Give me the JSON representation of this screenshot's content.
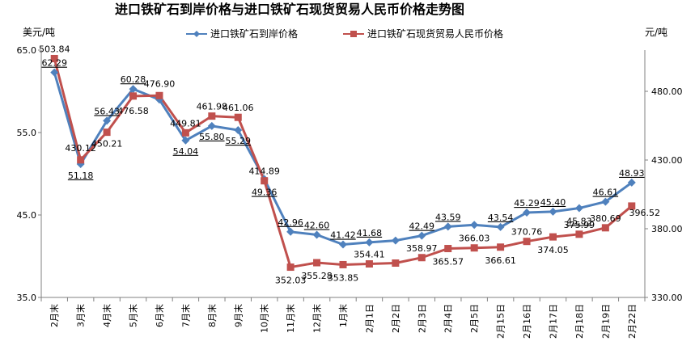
{
  "chart_data": {
    "type": "line",
    "title": "进口铁矿石到岸价格与进口铁矿石现货贸易人民币价格走势图",
    "y_left_unit": "美元/吨",
    "y_right_unit": "元/吨",
    "y_left": {
      "min": 35.0,
      "max": 65.0,
      "ticks": [
        "65.0",
        "55.0",
        "45.0",
        "35.0"
      ],
      "tick_values": [
        65,
        55,
        45,
        35
      ]
    },
    "y_right": {
      "min": 330.0,
      "max": 510.0,
      "ticks": [
        "480.00",
        "430.00",
        "380.00",
        "330.00"
      ],
      "tick_values": [
        480,
        430,
        380,
        330
      ]
    },
    "grid": false,
    "legend_position": "top-center",
    "categories": [
      "2月末",
      "3月末",
      "4月末",
      "5月末",
      "6月末",
      "7月末",
      "8月末",
      "9月末",
      "10月末",
      "11月末",
      "12月末",
      "1月末",
      "2月1日",
      "2月2日",
      "2月3日",
      "2月4日",
      "2月5日",
      "2月15日",
      "2月16日",
      "2月17日",
      "2月18日",
      "2月19日",
      "2月22日"
    ],
    "series": [
      {
        "name": "进口铁矿石到岸价格",
        "axis": "left",
        "color": "#4f81bd",
        "marker": "diamond",
        "values": [
          62.29,
          51.18,
          56.43,
          60.28,
          59.0,
          54.04,
          55.8,
          55.29,
          49.36,
          42.96,
          42.6,
          41.42,
          41.68,
          41.9,
          42.49,
          43.59,
          43.8,
          43.54,
          45.29,
          45.4,
          45.83,
          46.61,
          48.93
        ],
        "labels": [
          "62.29",
          "51.18",
          "56.43",
          "60.28",
          "",
          "54.04",
          "55.80",
          "55.29",
          "49.36",
          "42.96",
          "42.60",
          "41.42",
          "41.68",
          "",
          "42.49",
          "43.59",
          "",
          "43.54",
          "45.29",
          "45.40",
          "45.83",
          "46.61",
          "48.93"
        ]
      },
      {
        "name": "进口铁矿石现货贸易人民币价格",
        "axis": "right",
        "color": "#c0504d",
        "marker": "square",
        "values": [
          503.84,
          430.12,
          450.21,
          476.58,
          476.9,
          449.81,
          461.98,
          461.06,
          414.89,
          352.03,
          355.28,
          353.85,
          354.41,
          355.0,
          358.97,
          365.57,
          366.03,
          366.61,
          370.76,
          374.05,
          375.99,
          380.69,
          396.52
        ],
        "labels": [
          "503.84",
          "430.12",
          "450.21",
          "476.58",
          "476.90",
          "449.81",
          "461.98",
          "461.06",
          "414.89",
          "352.03",
          "355.28",
          "353.85",
          "354.41",
          "",
          "358.97",
          "365.57",
          "366.03",
          "366.61",
          "370.76",
          "374.05",
          "375.99",
          "380.69",
          "396.52"
        ]
      }
    ]
  }
}
